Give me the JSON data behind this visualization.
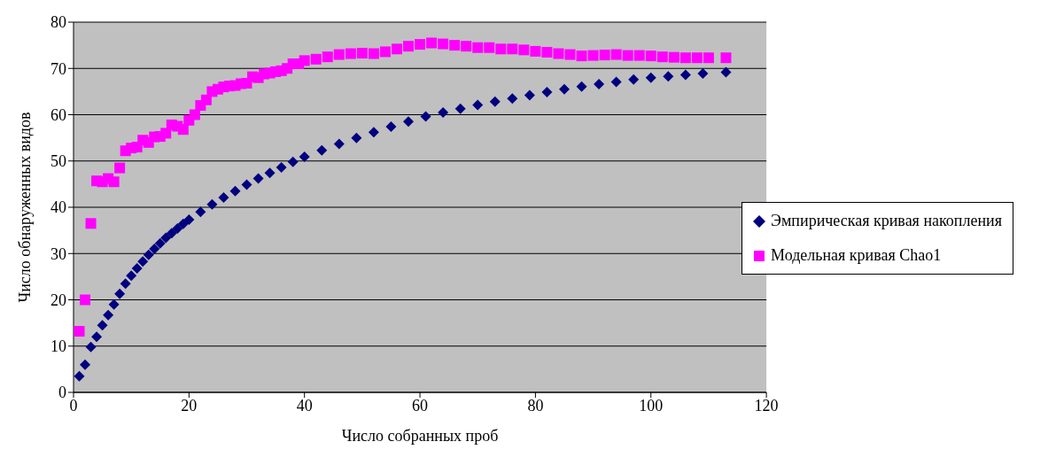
{
  "chart_data": {
    "type": "scatter",
    "xlabel": "Число собранных проб",
    "ylabel": "Число обнаруженных видов",
    "xlim": [
      0,
      120
    ],
    "xticks": [
      0,
      20,
      40,
      60,
      80,
      100,
      120
    ],
    "ylim": [
      0,
      80
    ],
    "yticks": [
      0,
      10,
      20,
      30,
      40,
      50,
      60,
      70,
      80
    ],
    "grid": "y",
    "legend": "right",
    "series": [
      {
        "name": "Эмпирическая кривая накопления",
        "color": "#000080",
        "marker": "diamond",
        "x": [
          1,
          2,
          3,
          4,
          5,
          6,
          7,
          8,
          9,
          10,
          11,
          12,
          13,
          14,
          15,
          16,
          17,
          18,
          19,
          20,
          22,
          24,
          26,
          28,
          30,
          32,
          34,
          36,
          38,
          40,
          43,
          46,
          49,
          52,
          55,
          58,
          61,
          64,
          67,
          70,
          73,
          76,
          79,
          82,
          85,
          88,
          91,
          94,
          97,
          100,
          103,
          106,
          109,
          113
        ],
        "values": [
          3.5,
          6,
          9.8,
          12,
          14.5,
          16.7,
          19,
          21.3,
          23.5,
          25.2,
          26.8,
          28.3,
          29.7,
          31,
          32.2,
          33.4,
          34.4,
          35.4,
          36.4,
          37.3,
          39,
          40.6,
          42.1,
          43.5,
          44.9,
          46.2,
          47.4,
          48.6,
          49.8,
          50.9,
          52.3,
          53.7,
          55,
          56.2,
          57.4,
          58.5,
          59.6,
          60.5,
          61.3,
          62.1,
          62.8,
          63.5,
          64.2,
          64.9,
          65.5,
          66.1,
          66.6,
          67.1,
          67.6,
          68,
          68.3,
          68.6,
          68.9,
          69.2
        ]
      },
      {
        "name": "Модельная кривая Chao1",
        "color": "#ff00ff",
        "marker": "square",
        "x": [
          1,
          2,
          3,
          4,
          5,
          6,
          7,
          8,
          9,
          10,
          11,
          12,
          13,
          14,
          15,
          16,
          17,
          18,
          19,
          20,
          21,
          22,
          23,
          24,
          25,
          26,
          27,
          28,
          29,
          30,
          31,
          32,
          33,
          34,
          35,
          36,
          37,
          38,
          39,
          40,
          42,
          44,
          46,
          48,
          50,
          52,
          54,
          56,
          58,
          60,
          62,
          64,
          66,
          68,
          70,
          72,
          74,
          76,
          78,
          80,
          82,
          84,
          86,
          88,
          90,
          92,
          94,
          96,
          98,
          100,
          102,
          104,
          106,
          108,
          110,
          113
        ],
        "values": [
          13.2,
          20,
          36.5,
          45.7,
          45.5,
          46.2,
          45.5,
          48.5,
          52.2,
          52.8,
          53,
          54.5,
          54,
          55.2,
          55.3,
          56,
          57.8,
          57.5,
          56.8,
          58.8,
          60,
          62,
          63.2,
          65,
          65.5,
          66,
          66.2,
          66.3,
          66.7,
          66.8,
          68.2,
          68,
          68.8,
          69,
          69.3,
          69.5,
          70,
          71,
          71,
          71.7,
          72,
          72.5,
          73,
          73.2,
          73.3,
          73.2,
          73.6,
          74.2,
          74.8,
          75.2,
          75.5,
          75.3,
          75,
          74.8,
          74.5,
          74.5,
          74.2,
          74.2,
          74,
          73.7,
          73.5,
          73.2,
          73,
          72.7,
          72.8,
          72.9,
          73,
          72.8,
          72.8,
          72.7,
          72.5,
          72.4,
          72.3,
          72.3,
          72.3,
          72.3
        ]
      }
    ]
  }
}
